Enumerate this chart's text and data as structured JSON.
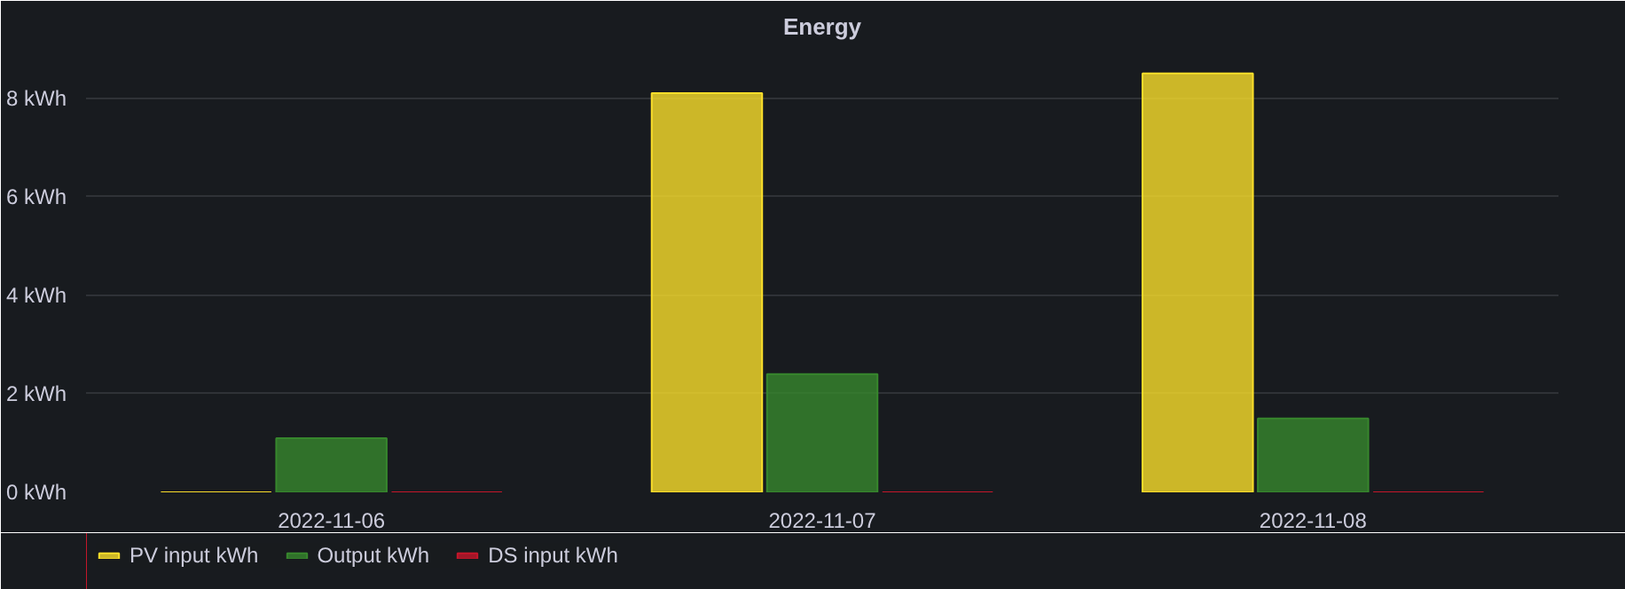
{
  "chart_data": {
    "type": "bar",
    "title": "Energy",
    "categories": [
      "2022-11-06",
      "2022-11-07",
      "2022-11-08"
    ],
    "series": [
      {
        "name": "PV input kWh",
        "color": "#fade2a",
        "values": [
          0,
          8.1,
          8.5
        ]
      },
      {
        "name": "Output kWh",
        "color": "#37872d",
        "values": [
          1.1,
          2.4,
          1.5
        ]
      },
      {
        "name": "DS input kWh",
        "color": "#c4162a",
        "values": [
          0,
          0,
          0
        ]
      }
    ],
    "ylim": [
      0,
      9
    ],
    "yticks": [
      {
        "value": 0,
        "label": "0 kWh"
      },
      {
        "value": 2,
        "label": "2 kWh"
      },
      {
        "value": 4,
        "label": "4 kWh"
      },
      {
        "value": 6,
        "label": "6 kWh"
      },
      {
        "value": 8,
        "label": "8 kWh"
      }
    ],
    "grid": "y",
    "legend": "bottom left"
  }
}
